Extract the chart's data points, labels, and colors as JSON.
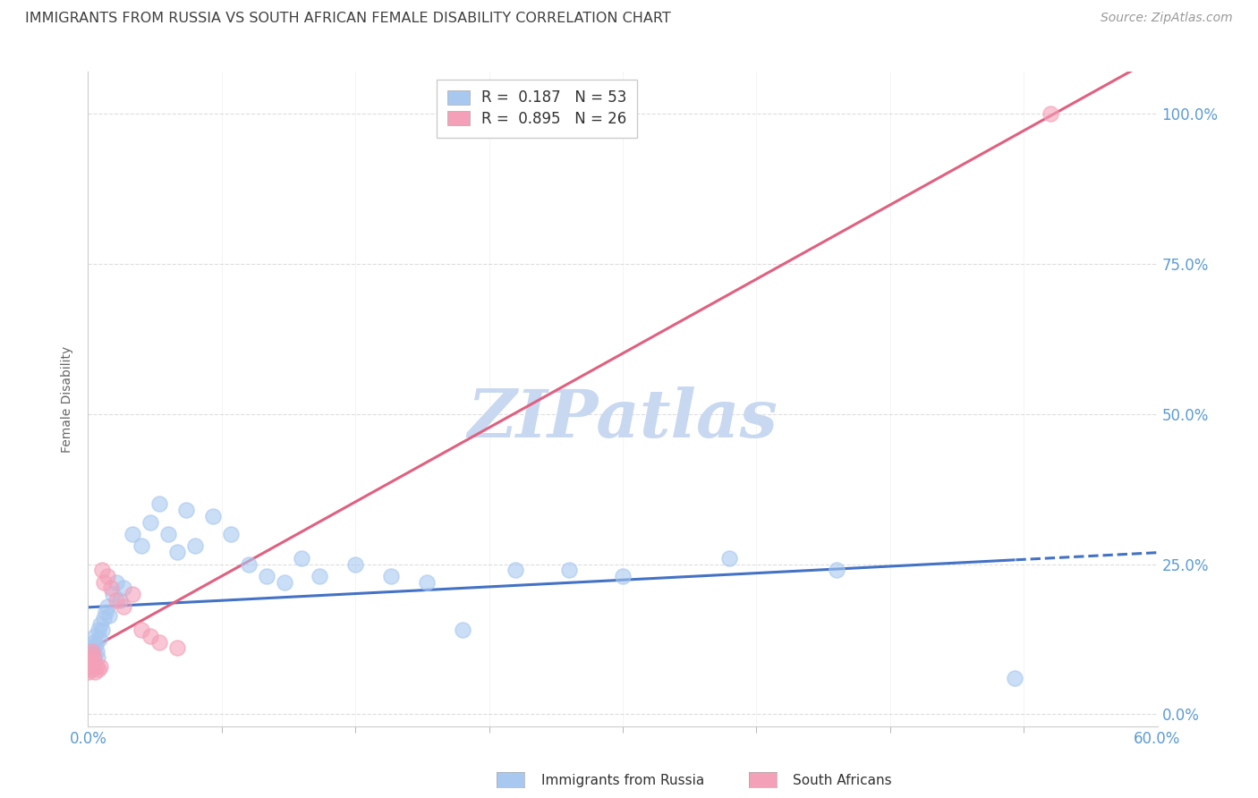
{
  "title": "IMMIGRANTS FROM RUSSIA VS SOUTH AFRICAN FEMALE DISABILITY CORRELATION CHART",
  "source": "Source: ZipAtlas.com",
  "ylabel": "Female Disability",
  "legend_russia": "Immigrants from Russia",
  "legend_sa": "South Africans",
  "R_russia": 0.187,
  "N_russia": 53,
  "R_sa": 0.895,
  "N_sa": 26,
  "color_russia": "#A8C8F0",
  "color_sa": "#F4A0B8",
  "color_russia_line": "#4472C4",
  "color_sa_line": "#E06080",
  "color_axis_labels": "#5B9BD5",
  "color_title": "#404040",
  "color_source": "#999999",
  "color_grid": "#DDDDDD",
  "watermark_color": "#C8D8F0",
  "xlim": [
    0.0,
    60.0
  ],
  "ylim": [
    -2.0,
    107.0
  ],
  "yticks": [
    0,
    25,
    50,
    75,
    100
  ],
  "xtick_positions": [
    0,
    60
  ],
  "xtick_labels": [
    "0.0%",
    "60.0%"
  ],
  "russia_x": [
    0.05,
    0.08,
    0.1,
    0.12,
    0.15,
    0.18,
    0.2,
    0.22,
    0.25,
    0.28,
    0.3,
    0.35,
    0.4,
    0.45,
    0.5,
    0.55,
    0.6,
    0.65,
    0.7,
    0.8,
    0.9,
    1.0,
    1.1,
    1.2,
    1.4,
    1.6,
    1.8,
    2.0,
    2.5,
    3.0,
    3.5,
    4.0,
    4.5,
    5.0,
    5.5,
    6.0,
    7.0,
    8.0,
    9.0,
    10.0,
    11.0,
    12.0,
    13.0,
    15.0,
    17.0,
    19.0,
    21.0,
    24.0,
    27.0,
    30.0,
    36.0,
    42.0,
    52.0
  ],
  "russia_y": [
    8.0,
    9.0,
    10.0,
    8.5,
    9.5,
    10.5,
    11.0,
    10.0,
    9.0,
    11.0,
    10.0,
    12.0,
    13.0,
    11.5,
    10.5,
    9.5,
    14.0,
    12.5,
    15.0,
    14.0,
    16.0,
    17.0,
    18.0,
    16.5,
    20.0,
    22.0,
    19.0,
    21.0,
    30.0,
    28.0,
    32.0,
    35.0,
    30.0,
    27.0,
    34.0,
    28.0,
    33.0,
    30.0,
    25.0,
    23.0,
    22.0,
    26.0,
    23.0,
    25.0,
    23.0,
    22.0,
    14.0,
    24.0,
    24.0,
    23.0,
    26.0,
    24.0,
    6.0
  ],
  "sa_x": [
    0.05,
    0.08,
    0.1,
    0.12,
    0.15,
    0.18,
    0.2,
    0.25,
    0.3,
    0.35,
    0.4,
    0.5,
    0.6,
    0.7,
    0.8,
    0.9,
    1.1,
    1.3,
    1.6,
    2.0,
    2.5,
    3.0,
    3.5,
    4.0,
    5.0,
    54.0
  ],
  "sa_y": [
    7.0,
    8.0,
    9.0,
    7.5,
    8.5,
    10.0,
    9.0,
    10.5,
    8.0,
    9.5,
    7.0,
    8.0,
    7.5,
    8.0,
    24.0,
    22.0,
    23.0,
    21.0,
    19.0,
    18.0,
    20.0,
    14.0,
    13.0,
    12.0,
    11.0,
    100.0
  ]
}
